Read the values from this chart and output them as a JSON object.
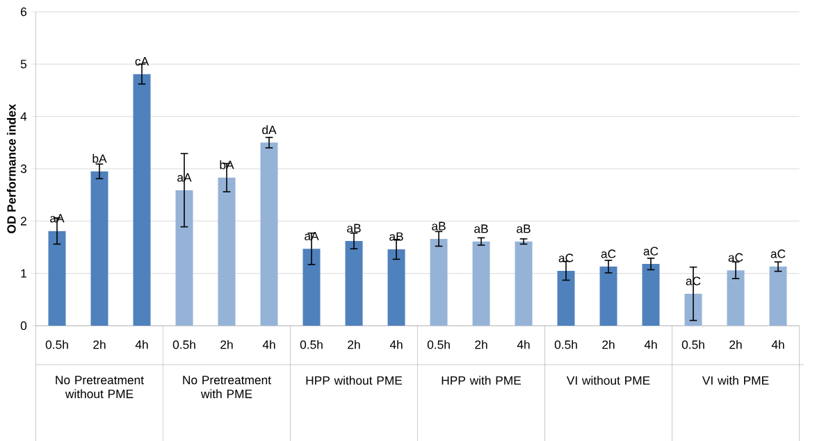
{
  "chart_data": {
    "type": "bar",
    "ylabel": "OD Performance index",
    "categories": [
      "0.5h",
      "2h",
      "4h",
      "0.5h",
      "2h",
      "4h",
      "0.5h",
      "2h",
      "4h",
      "0.5h",
      "2h",
      "4h",
      "0.5h",
      "2h",
      "4h",
      "0.5h",
      "2h",
      "4h"
    ],
    "values": [
      1.81,
      2.95,
      4.81,
      2.59,
      2.83,
      3.5,
      1.47,
      1.62,
      1.46,
      1.66,
      1.61,
      1.61,
      1.05,
      1.13,
      1.18,
      0.61,
      1.06,
      1.13
    ],
    "errors": [
      0.25,
      0.14,
      0.19,
      0.7,
      0.27,
      0.1,
      0.3,
      0.15,
      0.19,
      0.14,
      0.07,
      0.05,
      0.18,
      0.12,
      0.11,
      0.51,
      0.16,
      0.09
    ],
    "value_labels": [
      "aA",
      "bA",
      "cA",
      "aA",
      "bA",
      "dA",
      "aA",
      "aB",
      "aB",
      "aB",
      "aB",
      "aB",
      "aC",
      "aC",
      "aC",
      "aC",
      "aC",
      "aC"
    ],
    "colors": [
      "#4f81bd",
      "#4f81bd",
      "#4f81bd",
      "#95b3d7",
      "#95b3d7",
      "#95b3d7",
      "#4f81bd",
      "#4f81bd",
      "#4f81bd",
      "#95b3d7",
      "#95b3d7",
      "#95b3d7",
      "#4f81bd",
      "#4f81bd",
      "#4f81bd",
      "#95b3d7",
      "#95b3d7",
      "#95b3d7"
    ],
    "annotations": [
      "No Pretreatment without PME",
      "No Pretreatment with PME",
      "HPP without PME",
      "HPP with PME",
      "VI without PME",
      "VI with PME"
    ],
    "ylim": [
      0,
      6
    ],
    "yticks": [
      0,
      1,
      2,
      3,
      4,
      5,
      6
    ],
    "grid": "y",
    "legend": false
  }
}
